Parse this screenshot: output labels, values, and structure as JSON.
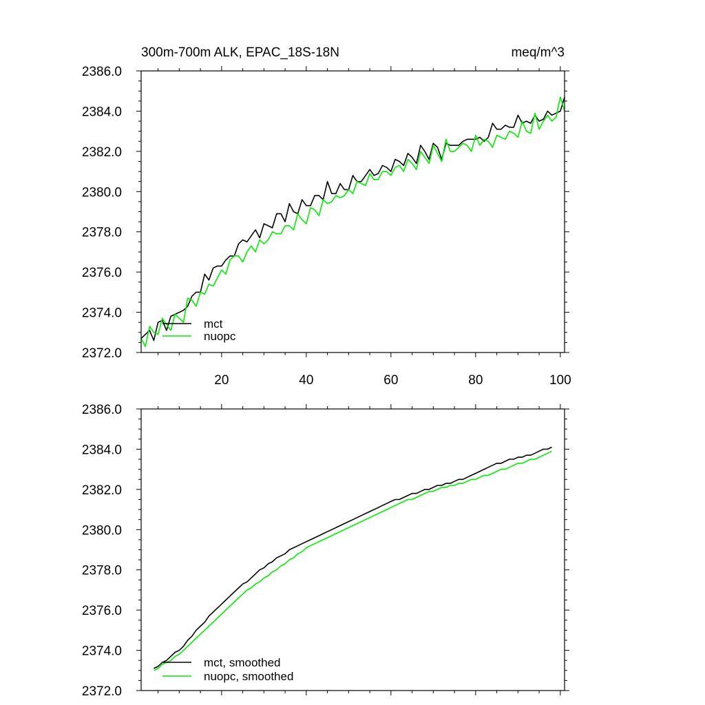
{
  "colors": {
    "mct": "#000000",
    "nuopc": "#00ee00",
    "axis": "#000000",
    "background": "#ffffff"
  },
  "chart_data": [
    {
      "type": "line",
      "title": "300m-700m ALK, EPAC_18S-18N",
      "units": "meq/m^3",
      "xlim": [
        1,
        101
      ],
      "ylim": [
        2372.0,
        2386.0
      ],
      "yticks": [
        "2372.0",
        "2374.0",
        "2376.0",
        "2378.0",
        "2380.0",
        "2382.0",
        "2384.0",
        "2386.0"
      ],
      "xticks": [
        "20",
        "40",
        "60",
        "80",
        "100"
      ],
      "show_xtick_labels": true,
      "legend_position": "bottom-left",
      "series": [
        {
          "name": "mct",
          "color": "#000000",
          "x_start": 1,
          "values": [
            2372.7,
            2372.9,
            2373.1,
            2372.6,
            2373.5,
            2373.6,
            2373.1,
            2373.8,
            2373.9,
            2374.0,
            2374.1,
            2374.3,
            2374.8,
            2375.0,
            2375.0,
            2375.9,
            2375.6,
            2376.2,
            2376.3,
            2376.3,
            2376.6,
            2376.8,
            2376.8,
            2377.4,
            2377.6,
            2377.5,
            2377.8,
            2378.1,
            2377.7,
            2378.4,
            2378.3,
            2378.2,
            2378.9,
            2378.9,
            2378.5,
            2379.4,
            2379.0,
            2378.9,
            2379.6,
            2379.3,
            2379.3,
            2379.8,
            2379.8,
            2379.6,
            2380.5,
            2379.9,
            2379.9,
            2380.4,
            2380.1,
            2380.1,
            2380.8,
            2380.5,
            2380.5,
            2380.8,
            2381.1,
            2380.8,
            2380.9,
            2381.3,
            2381.2,
            2381.0,
            2381.6,
            2381.5,
            2381.3,
            2381.9,
            2381.7,
            2381.4,
            2382.3,
            2382.0,
            2381.6,
            2382.4,
            2382.2,
            2381.6,
            2382.4,
            2382.3,
            2382.3,
            2382.3,
            2382.5,
            2382.6,
            2382.6,
            2382.6,
            2382.7,
            2382.5,
            2382.7,
            2383.4,
            2383.1,
            2383.1,
            2383.3,
            2383.2,
            2383.2,
            2383.8,
            2383.4,
            2383.5,
            2383.4,
            2383.8,
            2383.5,
            2383.6,
            2384.0,
            2383.8,
            2383.9,
            2384.0,
            2384.7
          ]
        },
        {
          "name": "nuopc",
          "color": "#00ee00",
          "x_start": 1,
          "values": [
            2372.7,
            2372.3,
            2373.3,
            2373.0,
            2372.9,
            2373.7,
            2373.4,
            2373.1,
            2373.9,
            2373.7,
            2373.5,
            2374.7,
            2374.6,
            2374.3,
            2375.0,
            2374.9,
            2375.4,
            2375.3,
            2375.7,
            2376.1,
            2375.9,
            2376.6,
            2376.8,
            2376.8,
            2376.5,
            2377.0,
            2377.3,
            2377.0,
            2377.6,
            2377.4,
            2377.6,
            2378.0,
            2377.9,
            2377.9,
            2378.3,
            2378.3,
            2378.1,
            2378.9,
            2378.6,
            2378.4,
            2379.2,
            2379.1,
            2378.8,
            2379.6,
            2379.4,
            2379.5,
            2379.8,
            2379.7,
            2379.8,
            2380.1,
            2379.9,
            2380.5,
            2380.4,
            2380.3,
            2380.9,
            2380.6,
            2380.6,
            2381.0,
            2381.0,
            2380.8,
            2381.2,
            2381.3,
            2381.0,
            2381.6,
            2381.4,
            2381.1,
            2382.0,
            2381.7,
            2381.4,
            2382.3,
            2381.9,
            2381.5,
            2382.6,
            2382.0,
            2382.0,
            2382.2,
            2382.4,
            2382.3,
            2382.0,
            2382.8,
            2382.3,
            2382.6,
            2382.5,
            2382.2,
            2382.8,
            2382.7,
            2382.6,
            2383.0,
            2382.9,
            2382.7,
            2383.5,
            2383.0,
            2382.9,
            2383.9,
            2383.1,
            2383.5,
            2383.8,
            2383.5,
            2383.7,
            2384.7,
            2384.0
          ]
        }
      ]
    },
    {
      "type": "line",
      "title": "",
      "units": "",
      "xlim": [
        1,
        101
      ],
      "ylim": [
        2372.0,
        2386.0
      ],
      "yticks": [
        "2372.0",
        "2374.0",
        "2376.0",
        "2378.0",
        "2380.0",
        "2382.0",
        "2384.0",
        "2386.0"
      ],
      "xticks": [
        "20",
        "40",
        "60",
        "80",
        "100"
      ],
      "show_xtick_labels": false,
      "legend_position": "bottom-left",
      "series": [
        {
          "name": "mct, smoothed",
          "color": "#000000",
          "x_start": 4,
          "values": [
            2373.1,
            2373.2,
            2373.4,
            2373.5,
            2373.7,
            2373.9,
            2374.0,
            2374.2,
            2374.5,
            2374.7,
            2375.0,
            2375.2,
            2375.4,
            2375.7,
            2375.9,
            2376.1,
            2376.3,
            2376.5,
            2376.7,
            2376.9,
            2377.1,
            2377.3,
            2377.4,
            2377.6,
            2377.8,
            2378.0,
            2378.1,
            2378.3,
            2378.4,
            2378.6,
            2378.7,
            2378.8,
            2379.0,
            2379.1,
            2379.2,
            2379.3,
            2379.4,
            2379.5,
            2379.6,
            2379.7,
            2379.8,
            2379.9,
            2380.0,
            2380.1,
            2380.2,
            2380.3,
            2380.4,
            2380.5,
            2380.6,
            2380.7,
            2380.8,
            2380.9,
            2381.0,
            2381.1,
            2381.2,
            2381.3,
            2381.4,
            2381.5,
            2381.5,
            2381.6,
            2381.7,
            2381.8,
            2381.8,
            2381.9,
            2382.0,
            2382.0,
            2382.1,
            2382.2,
            2382.2,
            2382.3,
            2382.3,
            2382.4,
            2382.5,
            2382.5,
            2382.6,
            2382.7,
            2382.8,
            2382.9,
            2383.0,
            2383.1,
            2383.2,
            2383.3,
            2383.3,
            2383.4,
            2383.5,
            2383.5,
            2383.6,
            2383.6,
            2383.7,
            2383.7,
            2383.8,
            2383.9,
            2384.0,
            2384.0,
            2384.1
          ]
        },
        {
          "name": "nuopc, smoothed",
          "color": "#00ee00",
          "x_start": 4,
          "values": [
            2373.0,
            2373.1,
            2373.3,
            2373.4,
            2373.5,
            2373.7,
            2373.8,
            2374.0,
            2374.2,
            2374.4,
            2374.6,
            2374.8,
            2375.0,
            2375.2,
            2375.4,
            2375.6,
            2375.8,
            2376.0,
            2376.2,
            2376.4,
            2376.6,
            2376.8,
            2377.0,
            2377.1,
            2377.3,
            2377.4,
            2377.6,
            2377.7,
            2377.9,
            2378.0,
            2378.2,
            2378.3,
            2378.5,
            2378.6,
            2378.8,
            2378.9,
            2379.1,
            2379.2,
            2379.3,
            2379.4,
            2379.5,
            2379.6,
            2379.7,
            2379.8,
            2379.9,
            2380.0,
            2380.1,
            2380.2,
            2380.3,
            2380.4,
            2380.5,
            2380.6,
            2380.7,
            2380.8,
            2380.9,
            2381.0,
            2381.1,
            2381.2,
            2381.3,
            2381.4,
            2381.5,
            2381.5,
            2381.6,
            2381.7,
            2381.8,
            2381.9,
            2381.9,
            2382.0,
            2382.1,
            2382.1,
            2382.2,
            2382.2,
            2382.3,
            2382.3,
            2382.4,
            2382.5,
            2382.5,
            2382.6,
            2382.7,
            2382.7,
            2382.8,
            2382.9,
            2383.0,
            2383.0,
            2383.1,
            2383.2,
            2383.3,
            2383.3,
            2383.4,
            2383.5,
            2383.5,
            2383.6,
            2383.7,
            2383.8,
            2383.9
          ]
        }
      ]
    }
  ]
}
